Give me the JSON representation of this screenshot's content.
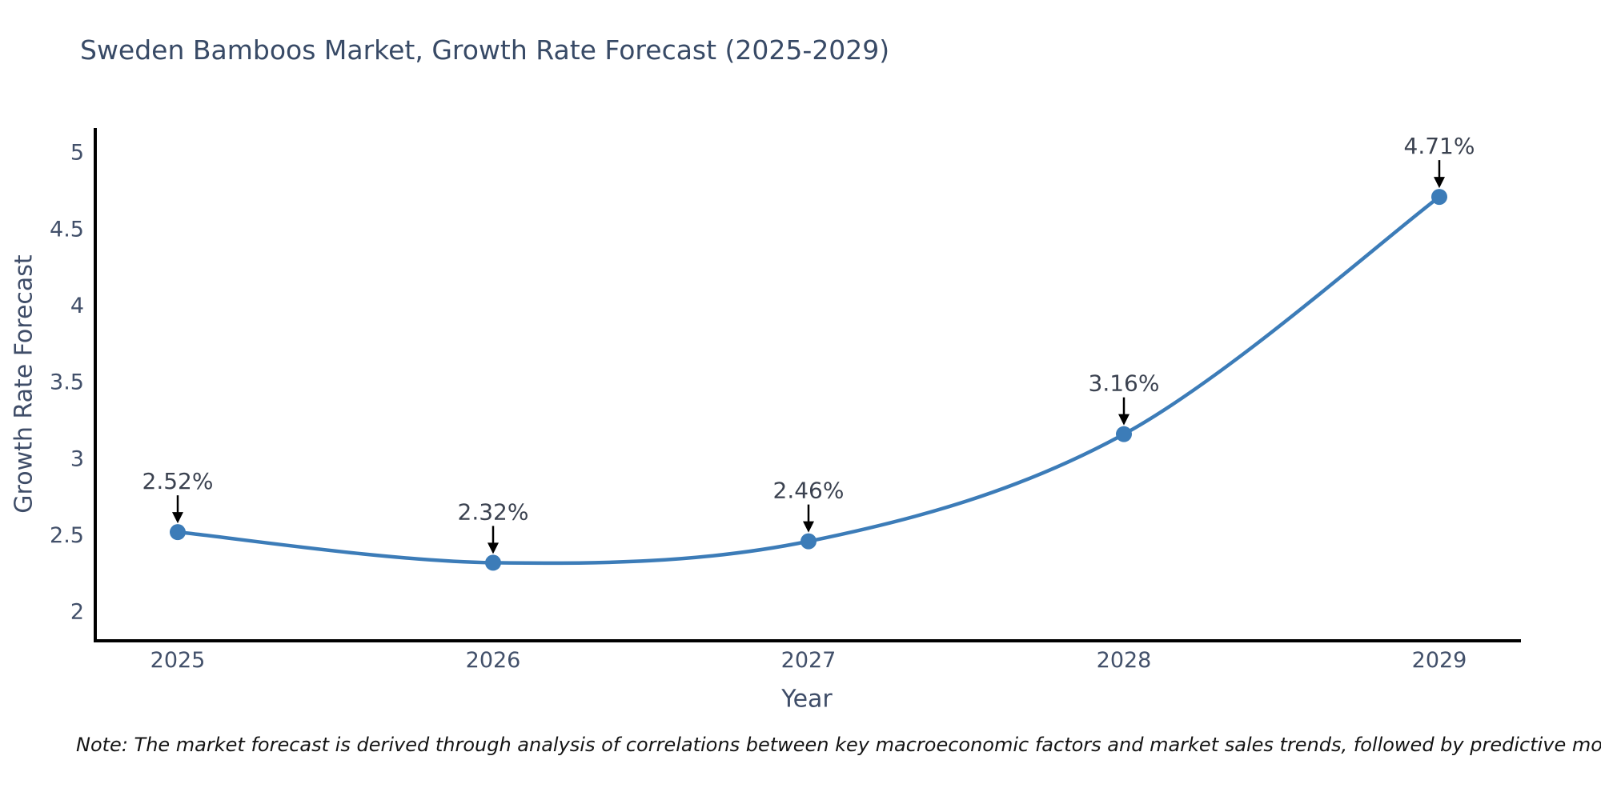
{
  "chart_data": {
    "type": "line",
    "title": "Sweden Bamboos Market, Growth Rate Forecast (2025-2029)",
    "xlabel": "Year",
    "ylabel": "Growth Rate Forecast",
    "categories": [
      "2025",
      "2026",
      "2027",
      "2028",
      "2029"
    ],
    "series": [
      {
        "name": "Growth Rate Forecast",
        "values": [
          2.52,
          2.32,
          2.46,
          3.16,
          4.71
        ]
      }
    ],
    "point_labels": [
      "2.52%",
      "2.32%",
      "2.46%",
      "3.16%",
      "4.71%"
    ],
    "y_ticks": [
      "2",
      "2.5",
      "3",
      "3.5",
      "4",
      "4.5",
      "5"
    ],
    "ylim": [
      1.81,
      5.16
    ],
    "grid": false,
    "legend": "none",
    "marker_style": "circle",
    "annotation_arrows": "black-down-arrows",
    "note": "Note: The market forecast is derived through analysis of correlations between key macroeconomic factors and market sales trends, followed by predictive modeling to project future sales",
    "colors": {
      "line": "#3c7cb8",
      "marker": "#3c7cb8",
      "axis": "#000000",
      "title_text": "#384a66",
      "tick_text": "#42506a",
      "annotation_text": "#3b4250",
      "arrow": "#000000",
      "note_text": "#141414",
      "background": "#ffffff"
    }
  }
}
